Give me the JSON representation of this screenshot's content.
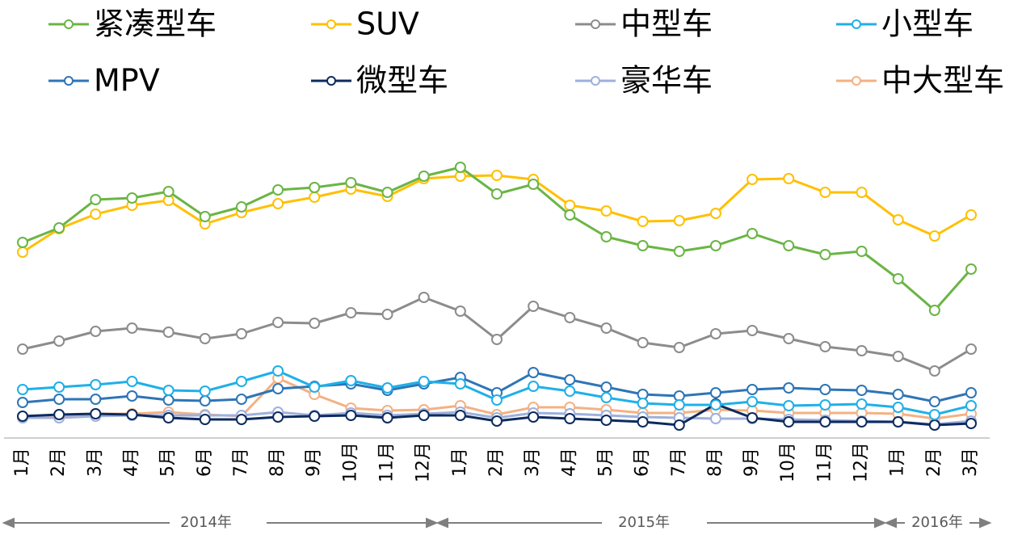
{
  "chart_data": {
    "type": "line",
    "categories": [
      "1月",
      "2月",
      "3月",
      "4月",
      "5月",
      "6月",
      "7月",
      "8月",
      "9月",
      "10月",
      "11月",
      "12月",
      "1月",
      "2月",
      "3月",
      "4月",
      "5月",
      "6月",
      "7月",
      "8月",
      "9月",
      "10月",
      "11月",
      "12月",
      "1月",
      "2月",
      "3月"
    ],
    "annotations": [
      "2014年",
      "2015年",
      "2016年"
    ],
    "ylim": [
      0,
      350
    ],
    "grid": false,
    "legend": "top",
    "series": [
      {
        "name": "紧凑型车",
        "color": "#6ab545",
        "values": [
          240,
          258,
          293,
          295,
          303,
          272,
          284,
          305,
          308,
          314,
          302,
          322,
          333,
          300,
          312,
          274,
          247,
          236,
          229,
          236,
          251,
          236,
          225,
          229,
          195,
          156,
          207
        ]
      },
      {
        "name": "SUV",
        "color": "#ffc000",
        "values": [
          228,
          257,
          275,
          286,
          292,
          263,
          277,
          288,
          296,
          306,
          297,
          319,
          322,
          323,
          318,
          286,
          279,
          266,
          267,
          276,
          318,
          319,
          302,
          302,
          268,
          248,
          274
        ]
      },
      {
        "name": "中型车",
        "color": "#8c8c8c",
        "values": [
          108,
          118,
          130,
          134,
          129,
          121,
          127,
          141,
          140,
          153,
          151,
          172,
          155,
          120,
          161,
          147,
          134,
          116,
          110,
          127,
          131,
          121,
          111,
          106,
          99,
          81,
          108
        ]
      },
      {
        "name": "小型车",
        "color": "#1fb0e8",
        "values": [
          58,
          61,
          64,
          68,
          57,
          56,
          68,
          81,
          61,
          69,
          60,
          68,
          65,
          45,
          62,
          56,
          48,
          41,
          39,
          39,
          43,
          38,
          39,
          40,
          36,
          27,
          38
        ]
      },
      {
        "name": "MPV",
        "color": "#2e75b6",
        "values": [
          42,
          46,
          46,
          50,
          45,
          44,
          46,
          59,
          62,
          65,
          57,
          65,
          73,
          54,
          79,
          70,
          61,
          52,
          50,
          54,
          58,
          60,
          58,
          57,
          52,
          43,
          54
        ]
      },
      {
        "name": "微型车",
        "color": "#0d2b5e",
        "values": [
          25,
          27,
          28,
          27,
          23,
          21,
          21,
          24,
          25,
          26,
          23,
          26,
          26,
          19,
          24,
          22,
          20,
          18,
          14,
          40,
          23,
          18,
          18,
          18,
          18,
          14,
          16
        ]
      },
      {
        "name": "豪华车",
        "color": "#9eb0dc",
        "values": [
          23,
          23,
          25,
          26,
          26,
          26,
          26,
          30,
          26,
          29,
          26,
          28,
          30,
          23,
          29,
          28,
          26,
          24,
          23,
          22,
          22,
          21,
          20,
          19,
          18,
          15,
          19
        ]
      },
      {
        "name": "中大型车",
        "color": "#f4b183",
        "values": [
          23,
          24,
          28,
          28,
          30,
          27,
          25,
          72,
          52,
          35,
          32,
          33,
          38,
          27,
          36,
          36,
          33,
          29,
          29,
          33,
          32,
          29,
          29,
          29,
          28,
          22,
          28
        ]
      }
    ]
  }
}
